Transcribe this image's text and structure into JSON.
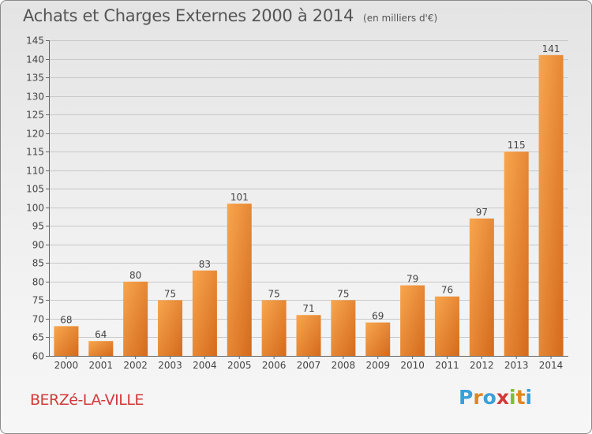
{
  "header": {
    "title": "Achats et Charges Externes 2000 à 2014",
    "unit": "(en milliers d'€)"
  },
  "footer": {
    "commune": "BERZé-LA-VILLE",
    "logo": "Proxiti"
  },
  "colors": {
    "bar_light": "#f8a64e",
    "bar_dark": "#d46a1c",
    "title": "#555555",
    "commune": "#d23a3a"
  },
  "chart_data": {
    "type": "bar",
    "title": "Achats et Charges Externes 2000 à 2014",
    "subtitle": "(en milliers d'€)",
    "categories": [
      "2000",
      "2001",
      "2002",
      "2003",
      "2004",
      "2005",
      "2006",
      "2007",
      "2008",
      "2009",
      "2010",
      "2011",
      "2012",
      "2013",
      "2014"
    ],
    "values": [
      68,
      64,
      80,
      75,
      83,
      101,
      75,
      71,
      75,
      69,
      79,
      76,
      97,
      115,
      141
    ],
    "ylim": [
      60,
      145
    ],
    "yticks": [
      60,
      65,
      70,
      75,
      80,
      85,
      90,
      95,
      100,
      105,
      110,
      115,
      120,
      125,
      130,
      135,
      140,
      145
    ],
    "grid": true,
    "legend": "none"
  }
}
